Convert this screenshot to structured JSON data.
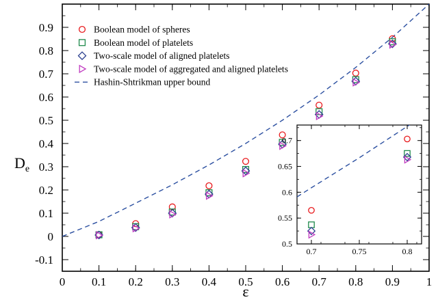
{
  "chart_data": [
    {
      "type": "scatter",
      "title": "",
      "xlabel": "ε",
      "ylabel_main": "D",
      "ylabel_sub": "e",
      "xlim": [
        0,
        1
      ],
      "ylim": [
        -0.15,
        1.0
      ],
      "xticks": [
        "0",
        "0.1",
        "0.2",
        "0.3",
        "0.4",
        "0.5",
        "0.6",
        "0.7",
        "0.8",
        "0.9",
        "1"
      ],
      "yticks": [
        "-0.1",
        "0",
        "0.1",
        "0.2",
        "0.3",
        "0.4",
        "0.5",
        "0.6",
        "0.7",
        "0.8",
        "0.9"
      ],
      "legend_position": "top-left",
      "series": [
        {
          "name": "Boolean model of spheres",
          "marker": "circle",
          "color": "#e8191c",
          "x": [
            0.1,
            0.2,
            0.3,
            0.4,
            0.5,
            0.6,
            0.7,
            0.8,
            0.9
          ],
          "y": [
            0.008,
            0.055,
            0.127,
            0.218,
            0.323,
            0.437,
            0.565,
            0.703,
            0.851
          ]
        },
        {
          "name": "Boolean model of platelets",
          "marker": "square",
          "color": "#1f8a4c",
          "x": [
            0.1,
            0.2,
            0.3,
            0.4,
            0.5,
            0.6,
            0.7,
            0.8,
            0.9
          ],
          "y": [
            0.007,
            0.042,
            0.105,
            0.188,
            0.288,
            0.405,
            0.537,
            0.675,
            0.838
          ]
        },
        {
          "name": "Two-scale model of aligned platelets",
          "marker": "diamond",
          "color": "#2b3f8f",
          "x": [
            0.1,
            0.2,
            0.3,
            0.4,
            0.5,
            0.6,
            0.7,
            0.8,
            0.9
          ],
          "y": [
            0.006,
            0.038,
            0.1,
            0.182,
            0.282,
            0.397,
            0.525,
            0.668,
            0.829
          ]
        },
        {
          "name": "Two-scale model of aggregated and aligned platelets",
          "marker": "triangle-right",
          "color": "#c03bc0",
          "x": [
            0.1,
            0.2,
            0.3,
            0.4,
            0.5,
            0.6,
            0.7,
            0.8,
            0.9
          ],
          "y": [
            0.005,
            0.035,
            0.095,
            0.175,
            0.272,
            0.39,
            0.518,
            0.663,
            0.826
          ]
        },
        {
          "name": "Hashin-Shtrikman upper bound",
          "line": "dashed",
          "color": "#2b4fa0",
          "x": [
            0,
            0.1,
            0.2,
            0.3,
            0.4,
            0.5,
            0.6,
            0.7,
            0.8,
            0.9,
            1.0
          ],
          "y": [
            0,
            0.0645,
            0.1429,
            0.2222,
            0.3077,
            0.4,
            0.5,
            0.6087,
            0.7273,
            0.8571,
            1.0
          ]
        }
      ]
    },
    {
      "type": "scatter",
      "title": "",
      "placement": "inset-bottom-right",
      "xlim": [
        0.685,
        0.815
      ],
      "ylim": [
        0.5,
        0.73
      ],
      "xticks": [
        "0.7",
        "0.75",
        "0.8"
      ],
      "yticks": [
        "0.5",
        "0.55",
        "0.6",
        "0.65",
        "0.7"
      ],
      "series": [
        {
          "name": "Boolean model of spheres",
          "marker": "circle",
          "color": "#e8191c",
          "x": [
            0.7,
            0.8
          ],
          "y": [
            0.565,
            0.703
          ]
        },
        {
          "name": "Boolean model of platelets",
          "marker": "square",
          "color": "#1f8a4c",
          "x": [
            0.7,
            0.8
          ],
          "y": [
            0.537,
            0.675
          ]
        },
        {
          "name": "Two-scale model of aligned platelets",
          "marker": "diamond",
          "color": "#2b3f8f",
          "x": [
            0.7,
            0.8
          ],
          "y": [
            0.525,
            0.668
          ]
        },
        {
          "name": "Two-scale model of aggregated and aligned platelets",
          "marker": "triangle-right",
          "color": "#c03bc0",
          "x": [
            0.7,
            0.8
          ],
          "y": [
            0.518,
            0.663
          ]
        },
        {
          "name": "Hashin-Shtrikman upper bound",
          "line": "dashed",
          "color": "#2b4fa0",
          "x": [
            0.685,
            0.7,
            0.75,
            0.8,
            0.815
          ],
          "y": [
            0.591,
            0.6087,
            0.6667,
            0.7273,
            0.746
          ]
        }
      ]
    }
  ]
}
